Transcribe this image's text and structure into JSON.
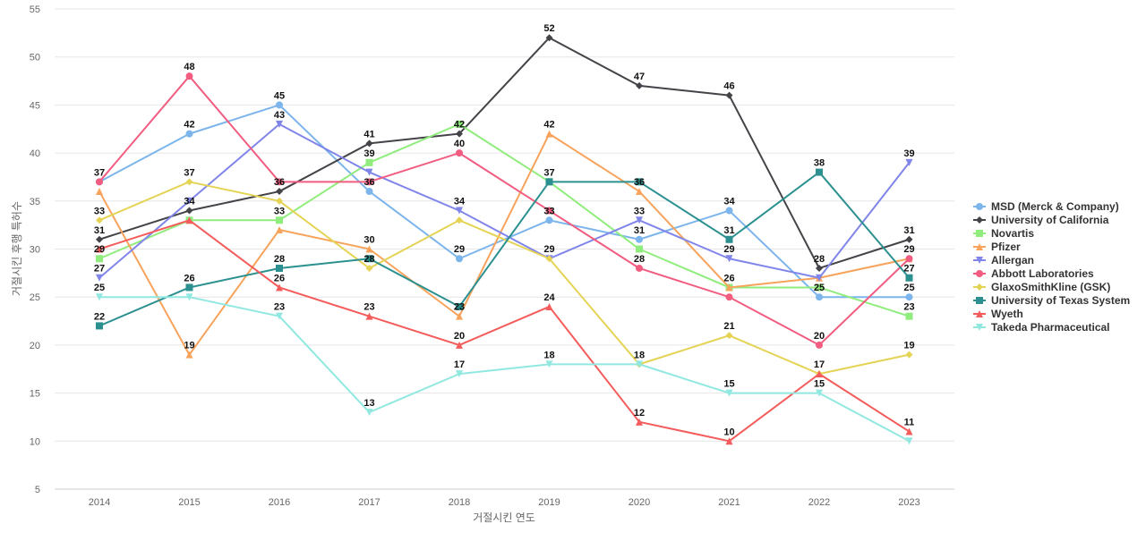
{
  "chart_data": {
    "type": "line",
    "title": "",
    "xlabel": "거절시킨 연도",
    "ylabel": "거절시킨 후행 특허수",
    "categories": [
      "2014",
      "2015",
      "2016",
      "2017",
      "2018",
      "2019",
      "2020",
      "2021",
      "2022",
      "2023"
    ],
    "ylim": [
      5,
      55
    ],
    "yticks": [
      5,
      10,
      15,
      20,
      25,
      30,
      35,
      40,
      45,
      50,
      55
    ],
    "grid": "horizontal",
    "legend_position": "right",
    "series": [
      {
        "name": "MSD (Merck & Company)",
        "color": "#7cb5ec",
        "marker": "circle",
        "values": [
          37,
          42,
          45,
          36,
          29,
          33,
          31,
          34,
          25,
          25
        ]
      },
      {
        "name": "University of California",
        "color": "#434348",
        "marker": "diamond",
        "values": [
          31,
          34,
          36,
          41,
          42,
          52,
          47,
          46,
          28,
          31
        ]
      },
      {
        "name": "Novartis",
        "color": "#90ed7d",
        "marker": "square",
        "values": [
          29,
          33,
          33,
          39,
          43,
          37,
          30,
          26,
          26,
          23
        ]
      },
      {
        "name": "Pfizer",
        "color": "#f7a35c",
        "marker": "triangle",
        "values": [
          36,
          19,
          32,
          30,
          23,
          42,
          36,
          26,
          27,
          29
        ]
      },
      {
        "name": "Allergan",
        "color": "#8085e9",
        "marker": "triangle-down",
        "values": [
          27,
          35,
          43,
          38,
          34,
          29,
          33,
          29,
          27,
          39
        ]
      },
      {
        "name": "Abbott Laboratories",
        "color": "#f15c80",
        "marker": "circle",
        "values": [
          37,
          48,
          37,
          37,
          40,
          34,
          28,
          25,
          20,
          29
        ]
      },
      {
        "name": "GlaxoSmithKline (GSK)",
        "color": "#e4d354",
        "marker": "diamond",
        "values": [
          33,
          37,
          35,
          28,
          33,
          29,
          18,
          21,
          17,
          19
        ]
      },
      {
        "name": "University of Texas System",
        "color": "#2b908f",
        "marker": "square",
        "values": [
          22,
          26,
          28,
          29,
          24,
          37,
          37,
          31,
          38,
          27
        ]
      },
      {
        "name": "Wyeth",
        "color": "#f45b5b",
        "marker": "triangle",
        "values": [
          30,
          33,
          26,
          23,
          20,
          24,
          12,
          10,
          17,
          11
        ]
      },
      {
        "name": "Takeda Pharmaceutical",
        "color": "#91e8e1",
        "marker": "triangle-down",
        "values": [
          25,
          25,
          23,
          13,
          17,
          18,
          18,
          15,
          15,
          10
        ]
      }
    ],
    "data_labels": [
      {
        "x": "2014",
        "y": 37,
        "text": "37"
      },
      {
        "x": "2014",
        "y": 33,
        "text": "33"
      },
      {
        "x": "2014",
        "y": 31,
        "text": "31"
      },
      {
        "x": "2014",
        "y": 29,
        "text": "29"
      },
      {
        "x": "2014",
        "y": 27,
        "text": "27"
      },
      {
        "x": "2014",
        "y": 25,
        "text": "25"
      },
      {
        "x": "2014",
        "y": 22,
        "text": "22"
      },
      {
        "x": "2015",
        "y": 48,
        "text": "48"
      },
      {
        "x": "2015",
        "y": 42,
        "text": "42"
      },
      {
        "x": "2015",
        "y": 37,
        "text": "37"
      },
      {
        "x": "2015",
        "y": 34,
        "text": "34"
      },
      {
        "x": "2015",
        "y": 26,
        "text": "26"
      },
      {
        "x": "2015",
        "y": 19,
        "text": "19"
      },
      {
        "x": "2016",
        "y": 45,
        "text": "45"
      },
      {
        "x": "2016",
        "y": 43,
        "text": "43"
      },
      {
        "x": "2016",
        "y": 36,
        "text": "36"
      },
      {
        "x": "2016",
        "y": 33,
        "text": "33"
      },
      {
        "x": "2016",
        "y": 28,
        "text": "28"
      },
      {
        "x": "2016",
        "y": 26,
        "text": "26"
      },
      {
        "x": "2016",
        "y": 23,
        "text": "23"
      },
      {
        "x": "2017",
        "y": 41,
        "text": "41"
      },
      {
        "x": "2017",
        "y": 39,
        "text": "39"
      },
      {
        "x": "2017",
        "y": 36,
        "text": "36"
      },
      {
        "x": "2017",
        "y": 30,
        "text": "30"
      },
      {
        "x": "2017",
        "y": 28,
        "text": "28"
      },
      {
        "x": "2017",
        "y": 23,
        "text": "23"
      },
      {
        "x": "2017",
        "y": 13,
        "text": "13"
      },
      {
        "x": "2018",
        "y": 42,
        "text": "42"
      },
      {
        "x": "2018",
        "y": 40,
        "text": "40"
      },
      {
        "x": "2018",
        "y": 34,
        "text": "34"
      },
      {
        "x": "2018",
        "y": 29,
        "text": "29"
      },
      {
        "x": "2018",
        "y": 23,
        "text": "23"
      },
      {
        "x": "2018",
        "y": 20,
        "text": "20"
      },
      {
        "x": "2018",
        "y": 17,
        "text": "17"
      },
      {
        "x": "2019",
        "y": 52,
        "text": "52"
      },
      {
        "x": "2019",
        "y": 42,
        "text": "42"
      },
      {
        "x": "2019",
        "y": 37,
        "text": "37"
      },
      {
        "x": "2019",
        "y": 33,
        "text": "33"
      },
      {
        "x": "2019",
        "y": 29,
        "text": "29"
      },
      {
        "x": "2019",
        "y": 24,
        "text": "24"
      },
      {
        "x": "2019",
        "y": 18,
        "text": "18"
      },
      {
        "x": "2020",
        "y": 47,
        "text": "47"
      },
      {
        "x": "2020",
        "y": 36,
        "text": "36"
      },
      {
        "x": "2020",
        "y": 33,
        "text": "33"
      },
      {
        "x": "2020",
        "y": 31,
        "text": "31"
      },
      {
        "x": "2020",
        "y": 28,
        "text": "28"
      },
      {
        "x": "2020",
        "y": 18,
        "text": "18"
      },
      {
        "x": "2020",
        "y": 12,
        "text": "12"
      },
      {
        "x": "2021",
        "y": 46,
        "text": "46"
      },
      {
        "x": "2021",
        "y": 34,
        "text": "34"
      },
      {
        "x": "2021",
        "y": 31,
        "text": "31"
      },
      {
        "x": "2021",
        "y": 29,
        "text": "29"
      },
      {
        "x": "2021",
        "y": 26,
        "text": "26"
      },
      {
        "x": "2021",
        "y": 21,
        "text": "21"
      },
      {
        "x": "2021",
        "y": 15,
        "text": "15"
      },
      {
        "x": "2021",
        "y": 10,
        "text": "10"
      },
      {
        "x": "2022",
        "y": 38,
        "text": "38"
      },
      {
        "x": "2022",
        "y": 28,
        "text": "28"
      },
      {
        "x": "2022",
        "y": 25,
        "text": "25"
      },
      {
        "x": "2022",
        "y": 20,
        "text": "20"
      },
      {
        "x": "2022",
        "y": 17,
        "text": "17"
      },
      {
        "x": "2022",
        "y": 15,
        "text": "15"
      },
      {
        "x": "2023",
        "y": 39,
        "text": "39"
      },
      {
        "x": "2023",
        "y": 31,
        "text": "31"
      },
      {
        "x": "2023",
        "y": 29,
        "text": "29"
      },
      {
        "x": "2023",
        "y": 27,
        "text": "27"
      },
      {
        "x": "2023",
        "y": 25,
        "text": "25"
      },
      {
        "x": "2023",
        "y": 23,
        "text": "23"
      },
      {
        "x": "2023",
        "y": 19,
        "text": "19"
      },
      {
        "x": "2023",
        "y": 11,
        "text": "11"
      }
    ]
  }
}
